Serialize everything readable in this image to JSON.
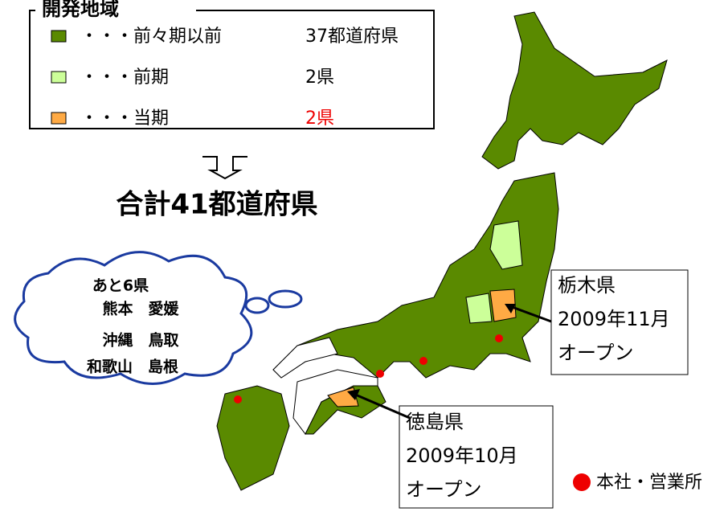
{
  "legend": {
    "title": "開発地域",
    "items": [
      {
        "label": "・・・前々期以前",
        "count": "37都道府県",
        "color": "#5a8a00"
      },
      {
        "label": "・・・前期",
        "count": "2県",
        "color": "#ccff99"
      },
      {
        "label": "・・・当期",
        "count": "2県",
        "color": "#ffaa44"
      }
    ]
  },
  "total": "合計41都道府県",
  "cloud": [
    "あと6県",
    "熊本　愛媛",
    "沖縄　鳥取",
    "和歌山　島根"
  ],
  "callouts": [
    {
      "pref": "栃木県",
      "date": "2009年11月",
      "status": "オープン"
    },
    {
      "pref": "徳島県",
      "date": "2009年10月",
      "status": "オープン"
    }
  ],
  "office_legend": "本社・営業所"
}
